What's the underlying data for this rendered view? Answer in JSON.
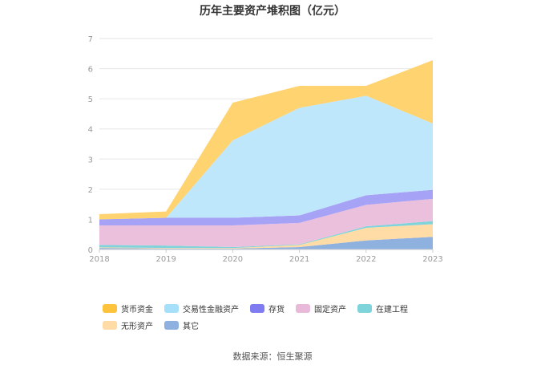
{
  "chart_data": {
    "type": "area",
    "stacked": true,
    "title": "历年主要资产堆积图（亿元）",
    "categories": [
      "2018",
      "2019",
      "2020",
      "2021",
      "2022",
      "2023"
    ],
    "ylim": [
      0,
      7
    ],
    "yticks": [
      "0",
      "1",
      "2",
      "3",
      "4",
      "5",
      "6",
      "7"
    ],
    "series": [
      {
        "name": "其它",
        "color": "#8FB1E0",
        "values": [
          0.05,
          0.03,
          0.03,
          0.08,
          0.3,
          0.42
        ]
      },
      {
        "name": "无形资产",
        "color": "#FFDBA5",
        "values": [
          0.02,
          0.02,
          0.02,
          0.07,
          0.42,
          0.42
        ]
      },
      {
        "name": "在建工程",
        "color": "#7FD3DB",
        "values": [
          0.08,
          0.08,
          0.03,
          0.02,
          0.05,
          0.1
        ]
      },
      {
        "name": "固定资产",
        "color": "#EBC0DD",
        "values": [
          0.65,
          0.67,
          0.72,
          0.71,
          0.71,
          0.74
        ]
      },
      {
        "name": "存货",
        "color": "#A6A2F5",
        "values": [
          0.2,
          0.25,
          0.25,
          0.25,
          0.32,
          0.3
        ]
      },
      {
        "name": "交易性金融资产",
        "color": "#BFE7FB",
        "values": [
          0.0,
          0.0,
          2.57,
          3.57,
          3.3,
          2.2
        ]
      },
      {
        "name": "货币资金",
        "color": "#FFD36F",
        "values": [
          0.17,
          0.21,
          1.25,
          0.73,
          0.33,
          2.1
        ]
      }
    ]
  },
  "legend_order": [
    "货币资金",
    "交易性金融资产",
    "存货",
    "固定资产",
    "在建工程",
    "无形资产",
    "其它"
  ],
  "legend_colors": {
    "货币资金": "#FDC33C",
    "交易性金融资产": "#A6DFFA",
    "存货": "#7F7BF0",
    "固定资产": "#E8B9D9",
    "在建工程": "#7FD3DB",
    "无形资产": "#FFDBA5",
    "其它": "#8FB1E0"
  },
  "source": "数据来源：恒生聚源"
}
